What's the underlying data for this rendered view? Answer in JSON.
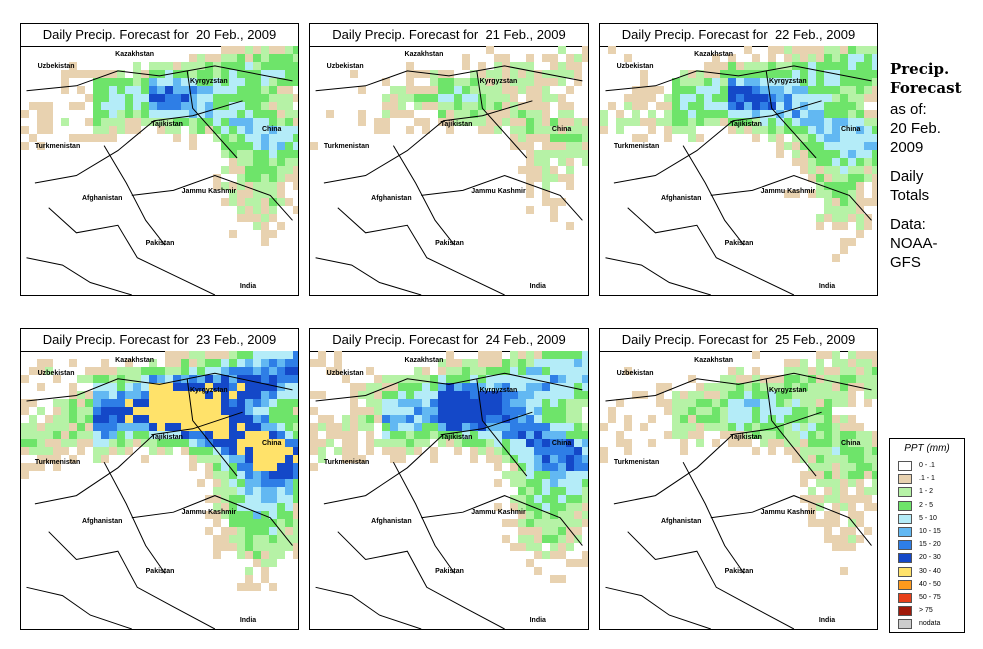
{
  "panels": [
    {
      "title": "Daily Precip. Forecast for  20 Feb., 2009",
      "intensity": 0.55
    },
    {
      "title": "Daily Precip. Forecast for  21 Feb., 2009",
      "intensity": 0.3
    },
    {
      "title": "Daily Precip. Forecast for  22 Feb., 2009",
      "intensity": 0.6
    },
    {
      "title": "Daily Precip. Forecast for  23 Feb., 2009",
      "intensity": 1.0
    },
    {
      "title": "Daily Precip. Forecast for  24 Feb., 2009",
      "intensity": 0.75
    },
    {
      "title": "Daily Precip. Forecast for  25 Feb., 2009",
      "intensity": 0.4
    }
  ],
  "map_labels": {
    "kazakhstan": "Kazakhstan",
    "uzbekistan": "Uzbekistan",
    "kyrgyzstan": "Kyrgyzstan",
    "tajikistan": "Tajikistan",
    "turkmenistan": "Turkmenistan",
    "china": "China",
    "afghanistan": "Afghanistan",
    "jammu_kashmir": "Jammu Kashmir",
    "pakistan": "Pakistan",
    "india": "India"
  },
  "side_text": {
    "precip": "Precip.",
    "forecast": "Forecast",
    "as_of": "as of:",
    "date": "20 Feb.",
    "year": "2009",
    "daily": "Daily",
    "totals": "Totals",
    "data": "Data:",
    "source1": "NOAA-",
    "source2": "GFS"
  },
  "legend": {
    "title": "PPT (mm)",
    "items": [
      {
        "label": "0 - .1",
        "color": "#ffffff"
      },
      {
        "label": ".1 - 1",
        "color": "#e8d2b0"
      },
      {
        "label": "1 - 2",
        "color": "#b6f2a6"
      },
      {
        "label": "2 - 5",
        "color": "#6ee46a"
      },
      {
        "label": "5 - 10",
        "color": "#b4ecf8"
      },
      {
        "label": "10 - 15",
        "color": "#62b8f2"
      },
      {
        "label": "15 - 20",
        "color": "#2e7ee6"
      },
      {
        "label": "20 - 30",
        "color": "#1448c8"
      },
      {
        "label": "30 - 40",
        "color": "#ffe26a"
      },
      {
        "label": "40 - 50",
        "color": "#ff9a1c"
      },
      {
        "label": "50 - 75",
        "color": "#e8401a"
      },
      {
        "label": "> 75",
        "color": "#a01a0a"
      },
      {
        "label": "nodata",
        "color": "#cccccc"
      }
    ]
  }
}
